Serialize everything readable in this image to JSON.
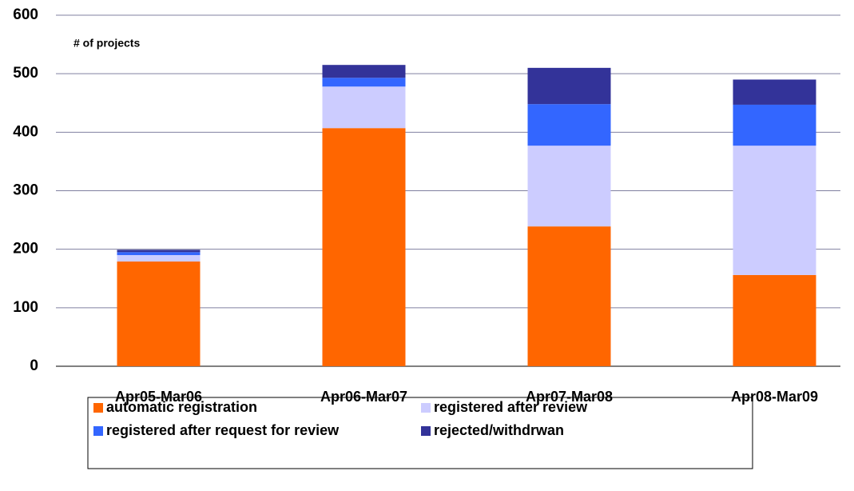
{
  "chart_data": {
    "type": "stacked_bar",
    "y_label": "# of projects",
    "categories": [
      "Apr05-Mar06",
      "Apr06-Mar07",
      "Apr07-Mar08",
      "Apr08-Mar09"
    ],
    "series": [
      {
        "name": "automatic registration",
        "color": "#ff6600",
        "values": [
          179,
          407,
          239,
          156
        ]
      },
      {
        "name": "registered after review",
        "color": "#ccccff",
        "values": [
          11,
          71,
          138,
          221
        ]
      },
      {
        "name": "registered after request for review",
        "color": "#3366ff",
        "values": [
          5,
          15,
          71,
          70
        ]
      },
      {
        "name": "rejected/withdrwan",
        "color": "#333399",
        "values": [
          4,
          22,
          62,
          43
        ]
      }
    ],
    "ylim": [
      0,
      600
    ],
    "yticks": [
      0,
      100,
      200,
      300,
      400,
      500,
      600
    ],
    "grid": true
  }
}
